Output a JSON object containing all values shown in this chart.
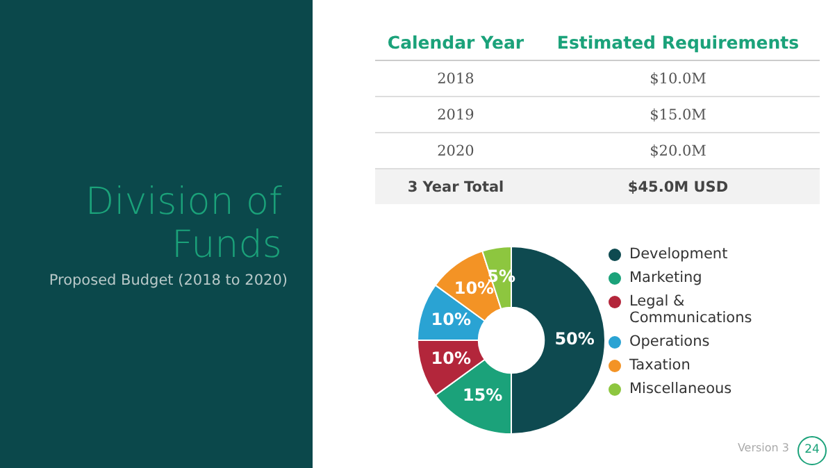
{
  "chart_data": {
    "type": "donut",
    "title": "Division of Funds",
    "subtitle": "Proposed Budget (2018 to 2020)",
    "categories": [
      "Development",
      "Marketing",
      "Legal & Communications",
      "Operations",
      "Taxation",
      "Miscellaneous"
    ],
    "values": [
      50,
      15,
      10,
      10,
      10,
      5
    ],
    "value_labels": [
      "50%",
      "15%",
      "10%",
      "10%",
      "10%",
      "5%"
    ],
    "colors": [
      "#0e4a50",
      "#1ba27a",
      "#b3263b",
      "#2aa3d3",
      "#f39325",
      "#8dc63f"
    ],
    "legend": "right",
    "annotations": [
      "Calendar Year",
      "Estimated Requirements",
      "2018",
      "$10.0M",
      "2019",
      "$15.0M",
      "2020",
      "$20.0M",
      "3 Year Total",
      "$45.0M USD",
      "Version 3",
      "24"
    ]
  }
}
